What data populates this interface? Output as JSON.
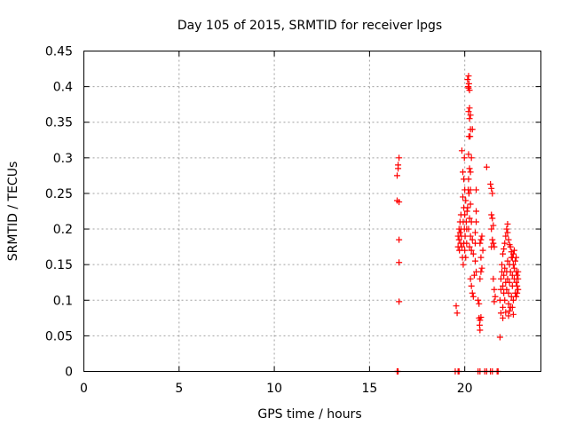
{
  "chart_data": {
    "type": "scatter",
    "title": "Day 105 of 2015, SRMTID for receiver lpgs",
    "xlabel": "GPS time / hours",
    "ylabel": "SRMTID / TECUs",
    "xlim": [
      0,
      24
    ],
    "ylim": [
      0,
      0.45
    ],
    "x_ticks": [
      "0",
      "5",
      "10",
      "15",
      "20"
    ],
    "x_tick_values": [
      0,
      5,
      10,
      15,
      20
    ],
    "y_ticks": [
      "0",
      "0.05",
      "0.1",
      "0.15",
      "0.2",
      "0.25",
      "0.3",
      "0.35",
      "0.4",
      "0.45"
    ],
    "y_tick_values": [
      0,
      0.05,
      0.1,
      0.15,
      0.2,
      0.25,
      0.3,
      0.35,
      0.4,
      0.45
    ],
    "grid": true,
    "marker": "+",
    "color": "#ff0000",
    "series": [
      {
        "points": [
          [
            16.45,
            0.0
          ],
          [
            16.5,
            0.0
          ],
          [
            16.45,
            0.275
          ],
          [
            16.5,
            0.29
          ],
          [
            16.55,
            0.3
          ],
          [
            16.5,
            0.285
          ],
          [
            16.45,
            0.24
          ],
          [
            16.55,
            0.238
          ],
          [
            16.55,
            0.185
          ],
          [
            16.55,
            0.153
          ],
          [
            16.55,
            0.098
          ],
          [
            19.5,
            0.0
          ],
          [
            19.65,
            0.0
          ],
          [
            19.7,
            0.0
          ],
          [
            20.7,
            0.0
          ],
          [
            20.8,
            0.0
          ],
          [
            21.05,
            0.0
          ],
          [
            21.15,
            0.0
          ],
          [
            21.35,
            0.0
          ],
          [
            21.45,
            0.0
          ],
          [
            21.7,
            0.0
          ],
          [
            21.75,
            0.0
          ],
          [
            19.55,
            0.092
          ],
          [
            19.6,
            0.082
          ],
          [
            19.65,
            0.175
          ],
          [
            19.65,
            0.19
          ],
          [
            19.7,
            0.2
          ],
          [
            19.7,
            0.185
          ],
          [
            19.72,
            0.17
          ],
          [
            19.75,
            0.21
          ],
          [
            19.75,
            0.195
          ],
          [
            19.78,
            0.18
          ],
          [
            19.8,
            0.2
          ],
          [
            19.8,
            0.22
          ],
          [
            19.82,
            0.19
          ],
          [
            19.85,
            0.31
          ],
          [
            19.85,
            0.175
          ],
          [
            19.88,
            0.16
          ],
          [
            19.9,
            0.28
          ],
          [
            19.9,
            0.245
          ],
          [
            19.92,
            0.21
          ],
          [
            19.92,
            0.15
          ],
          [
            19.95,
            0.27
          ],
          [
            19.95,
            0.23
          ],
          [
            19.95,
            0.18
          ],
          [
            19.98,
            0.3
          ],
          [
            19.98,
            0.2
          ],
          [
            20.0,
            0.255
          ],
          [
            20.0,
            0.22
          ],
          [
            20.0,
            0.17
          ],
          [
            20.02,
            0.19
          ],
          [
            20.05,
            0.24
          ],
          [
            20.05,
            0.16
          ],
          [
            20.08,
            0.21
          ],
          [
            20.1,
            0.18
          ],
          [
            20.1,
            0.2
          ],
          [
            20.12,
            0.225
          ],
          [
            20.15,
            0.41
          ],
          [
            20.18,
            0.4
          ],
          [
            20.2,
            0.415
          ],
          [
            20.2,
            0.398
          ],
          [
            20.22,
            0.404
          ],
          [
            20.25,
            0.395
          ],
          [
            20.2,
            0.365
          ],
          [
            20.25,
            0.37
          ],
          [
            20.25,
            0.355
          ],
          [
            20.3,
            0.36
          ],
          [
            20.3,
            0.34
          ],
          [
            20.22,
            0.33
          ],
          [
            20.28,
            0.33
          ],
          [
            20.4,
            0.34
          ],
          [
            20.2,
            0.305
          ],
          [
            20.25,
            0.285
          ],
          [
            20.3,
            0.28
          ],
          [
            20.35,
            0.3
          ],
          [
            20.2,
            0.27
          ],
          [
            20.3,
            0.255
          ],
          [
            20.18,
            0.255
          ],
          [
            20.22,
            0.25
          ],
          [
            20.3,
            0.235
          ],
          [
            20.15,
            0.23
          ],
          [
            20.25,
            0.215
          ],
          [
            20.35,
            0.21
          ],
          [
            20.2,
            0.2
          ],
          [
            20.3,
            0.19
          ],
          [
            20.4,
            0.185
          ],
          [
            20.25,
            0.175
          ],
          [
            20.35,
            0.17
          ],
          [
            20.45,
            0.165
          ],
          [
            20.3,
            0.13
          ],
          [
            20.35,
            0.12
          ],
          [
            20.4,
            0.11
          ],
          [
            20.45,
            0.105
          ],
          [
            20.5,
            0.135
          ],
          [
            20.55,
            0.155
          ],
          [
            20.6,
            0.21
          ],
          [
            20.6,
            0.14
          ],
          [
            20.55,
            0.195
          ],
          [
            20.55,
            0.18
          ],
          [
            20.6,
            0.255
          ],
          [
            20.6,
            0.225
          ],
          [
            20.7,
            0.1
          ],
          [
            20.75,
            0.095
          ],
          [
            20.75,
            0.075
          ],
          [
            20.78,
            0.065
          ],
          [
            20.8,
            0.072
          ],
          [
            20.8,
            0.058
          ],
          [
            20.85,
            0.076
          ],
          [
            20.8,
            0.13
          ],
          [
            20.85,
            0.14
          ],
          [
            20.9,
            0.145
          ],
          [
            20.8,
            0.18
          ],
          [
            20.85,
            0.185
          ],
          [
            20.9,
            0.19
          ],
          [
            20.85,
            0.16
          ],
          [
            20.95,
            0.17
          ],
          [
            21.15,
            0.287
          ],
          [
            21.35,
            0.263
          ],
          [
            21.4,
            0.257
          ],
          [
            21.45,
            0.25
          ],
          [
            21.4,
            0.22
          ],
          [
            21.45,
            0.215
          ],
          [
            21.5,
            0.205
          ],
          [
            21.4,
            0.2
          ],
          [
            21.45,
            0.185
          ],
          [
            21.5,
            0.18
          ],
          [
            21.4,
            0.175
          ],
          [
            21.55,
            0.175
          ],
          [
            21.5,
            0.13
          ],
          [
            21.55,
            0.115
          ],
          [
            21.6,
            0.105
          ],
          [
            21.55,
            0.098
          ],
          [
            21.85,
            0.048
          ],
          [
            21.85,
            0.1
          ],
          [
            21.9,
            0.115
          ],
          [
            21.9,
            0.13
          ],
          [
            21.95,
            0.14
          ],
          [
            21.95,
            0.15
          ],
          [
            22.0,
            0.12
          ],
          [
            22.0,
            0.09
          ],
          [
            22.05,
            0.11
          ],
          [
            22.05,
            0.135
          ],
          [
            22.1,
            0.145
          ],
          [
            22.1,
            0.1
          ],
          [
            22.15,
            0.125
          ],
          [
            22.15,
            0.083
          ],
          [
            22.2,
            0.115
          ],
          [
            22.2,
            0.14
          ],
          [
            22.25,
            0.155
          ],
          [
            22.25,
            0.13
          ],
          [
            22.3,
            0.095
          ],
          [
            22.3,
            0.11
          ],
          [
            22.35,
            0.15
          ],
          [
            22.35,
            0.125
          ],
          [
            22.4,
            0.14
          ],
          [
            22.4,
            0.09
          ],
          [
            22.45,
            0.105
          ],
          [
            22.45,
            0.16
          ],
          [
            22.5,
            0.12
          ],
          [
            22.5,
            0.135
          ],
          [
            22.55,
            0.15
          ],
          [
            22.55,
            0.1
          ],
          [
            22.6,
            0.13
          ],
          [
            22.6,
            0.145
          ],
          [
            22.65,
            0.11
          ],
          [
            22.65,
            0.155
          ],
          [
            22.7,
            0.125
          ],
          [
            22.7,
            0.14
          ],
          [
            22.75,
            0.135
          ],
          [
            22.75,
            0.12
          ],
          [
            22.8,
            0.14
          ],
          [
            22.8,
            0.13
          ],
          [
            22.0,
            0.165
          ],
          [
            22.05,
            0.172
          ],
          [
            22.1,
            0.18
          ],
          [
            22.15,
            0.19
          ],
          [
            22.2,
            0.2
          ],
          [
            22.25,
            0.195
          ],
          [
            22.3,
            0.185
          ],
          [
            22.4,
            0.175
          ],
          [
            22.45,
            0.168
          ],
          [
            22.5,
            0.16
          ],
          [
            22.25,
            0.207
          ],
          [
            22.35,
            0.178
          ],
          [
            22.55,
            0.165
          ],
          [
            22.6,
            0.17
          ],
          [
            22.7,
            0.16
          ],
          [
            22.3,
            0.078
          ],
          [
            22.35,
            0.085
          ],
          [
            22.5,
            0.09
          ],
          [
            22.55,
            0.08
          ],
          [
            22.7,
            0.105
          ],
          [
            22.75,
            0.11
          ],
          [
            22.8,
            0.115
          ],
          [
            21.9,
            0.082
          ],
          [
            22.0,
            0.075
          ]
        ]
      }
    ]
  }
}
